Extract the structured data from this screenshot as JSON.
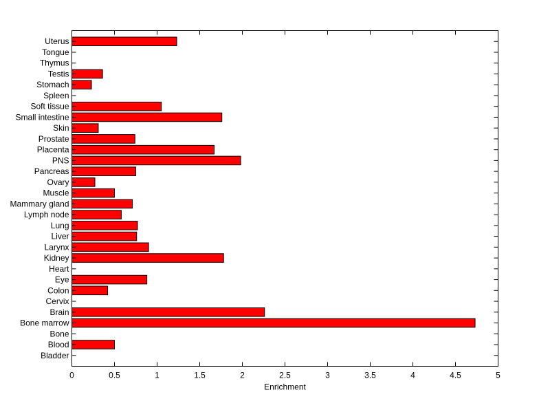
{
  "chart_data": {
    "type": "bar",
    "orientation": "horizontal",
    "title": "",
    "xlabel": "Enrichment",
    "ylabel": "",
    "xlim": [
      0,
      5
    ],
    "xticks": [
      0,
      0.5,
      1,
      1.5,
      2,
      2.5,
      3,
      3.5,
      4,
      4.5,
      5
    ],
    "xtick_labels": [
      "0",
      "0.5",
      "1",
      "1.5",
      "2",
      "2.5",
      "3",
      "3.5",
      "4",
      "4.5",
      "5"
    ],
    "grid": false,
    "legend": "none",
    "bar_color": "#ff0000",
    "categories": [
      "Bladder",
      "Blood",
      "Bone",
      "Bone marrow",
      "Brain",
      "Cervix",
      "Colon",
      "Eye",
      "Heart",
      "Kidney",
      "Larynx",
      "Liver",
      "Lung",
      "Lymph node",
      "Mammary gland",
      "Muscle",
      "Ovary",
      "Pancreas",
      "PNS",
      "Placenta",
      "Prostate",
      "Skin",
      "Small intestine",
      "Soft tissue",
      "Spleen",
      "Stomach",
      "Testis",
      "Thymus",
      "Tongue",
      "Uterus"
    ],
    "values": [
      0,
      0.5,
      0,
      4.73,
      2.26,
      0,
      0.42,
      0.88,
      0,
      1.78,
      0.9,
      0.76,
      0.77,
      0.58,
      0.71,
      0.5,
      0.27,
      0.75,
      1.98,
      1.67,
      0.74,
      0.31,
      1.76,
      1.05,
      0,
      0.23,
      0.36,
      0,
      0,
      1.23
    ]
  }
}
